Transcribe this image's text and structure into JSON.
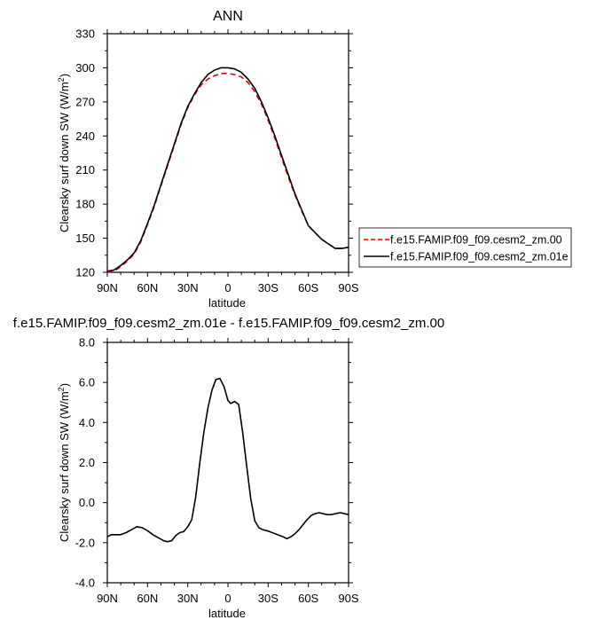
{
  "chart_data": [
    {
      "type": "line",
      "title": "ANN",
      "xlabel": "latitude",
      "ylabel": "Clearsky surf down SW (W/m",
      "ylabel_superscript": "2",
      "ylabel_close": ")",
      "xlim": [
        90,
        -90
      ],
      "ylim": [
        120,
        330
      ],
      "xticks": [
        90,
        60,
        30,
        0,
        -30,
        -60,
        -90
      ],
      "xtick_labels": [
        "90N",
        "60N",
        "30N",
        "0",
        "30S",
        "60S",
        "90S"
      ],
      "yticks": [
        120,
        150,
        180,
        210,
        240,
        270,
        300,
        330
      ],
      "ytick_labels": [
        "120",
        "150",
        "180",
        "210",
        "240",
        "270",
        "300",
        "330"
      ],
      "legend_position": "right",
      "x": [
        90,
        85,
        80,
        75,
        70,
        65,
        60,
        55,
        50,
        45,
        40,
        35,
        30,
        25,
        20,
        15,
        10,
        5,
        0,
        -5,
        -10,
        -15,
        -20,
        -25,
        -30,
        -35,
        -40,
        -45,
        -50,
        -55,
        -60,
        -65,
        -70,
        -75,
        -80,
        -85,
        -90
      ],
      "series": [
        {
          "name": "f.e15.FAMIP.f09_f09.cesm2_zm.00",
          "color": "#dd0000",
          "dash": "6,4",
          "values": [
            120,
            121,
            125,
            130,
            136,
            147,
            162,
            178,
            196,
            214,
            232,
            250,
            265,
            276,
            285,
            290,
            293,
            295,
            295,
            294,
            292,
            287,
            279,
            268,
            254,
            238,
            221,
            204,
            188,
            174,
            161,
            155,
            149,
            145,
            141,
            141,
            142
          ]
        },
        {
          "name": "f.e15.FAMIP.f09_f09.cesm2_zm.01e",
          "color": "#000000",
          "dash": "",
          "values": [
            121,
            122,
            126,
            131,
            137,
            148,
            163,
            179,
            197,
            215,
            233,
            251,
            266,
            277,
            287,
            294,
            298,
            300,
            300,
            299,
            296,
            290,
            282,
            270,
            256,
            240,
            223,
            206,
            189,
            175,
            161,
            155,
            149,
            145,
            141,
            141,
            142
          ]
        }
      ]
    },
    {
      "type": "line",
      "title": "f.e15.FAMIP.f09_f09.cesm2_zm.01e - f.e15.FAMIP.f09_f09.cesm2_zm.00",
      "xlabel": "latitude",
      "ylabel": "Clearsky surf down SW (W/m",
      "ylabel_superscript": "2",
      "ylabel_close": ")",
      "xlim": [
        90,
        -90
      ],
      "ylim": [
        -4.0,
        8.0
      ],
      "xticks": [
        90,
        60,
        30,
        0,
        -30,
        -60,
        -90
      ],
      "xtick_labels": [
        "90N",
        "60N",
        "30N",
        "0",
        "30S",
        "60S",
        "90S"
      ],
      "yticks": [
        -4.0,
        -2.0,
        0.0,
        2.0,
        4.0,
        6.0,
        8.0
      ],
      "ytick_labels": [
        "-4.0",
        "-2.0",
        "0.0",
        "2.0",
        "4.0",
        "6.0",
        "8.0"
      ],
      "x": [
        90,
        87,
        84,
        80,
        76,
        72,
        68,
        64,
        60,
        56,
        52,
        48,
        45,
        42,
        39,
        36,
        33,
        30,
        27,
        24,
        21,
        18,
        15,
        12,
        9,
        6,
        3,
        0,
        -2,
        -5,
        -8,
        -11,
        -14,
        -17,
        -20,
        -23,
        -26,
        -29,
        -33,
        -37,
        -41,
        -44,
        -47,
        -50,
        -53,
        -56,
        -59,
        -62,
        -65,
        -68,
        -71,
        -74,
        -77,
        -80,
        -84,
        -87,
        -90
      ],
      "series": [
        {
          "name": "",
          "color": "#000000",
          "dash": "",
          "values": [
            -1.7,
            -1.6,
            -1.6,
            -1.6,
            -1.5,
            -1.35,
            -1.2,
            -1.25,
            -1.4,
            -1.6,
            -1.75,
            -1.9,
            -1.95,
            -1.9,
            -1.65,
            -1.5,
            -1.45,
            -1.2,
            -0.85,
            0.3,
            2.0,
            3.5,
            4.7,
            5.6,
            6.15,
            6.2,
            5.8,
            5.1,
            4.95,
            5.05,
            4.9,
            3.5,
            1.8,
            0.2,
            -0.9,
            -1.25,
            -1.35,
            -1.4,
            -1.5,
            -1.6,
            -1.7,
            -1.8,
            -1.7,
            -1.55,
            -1.35,
            -1.1,
            -0.85,
            -0.65,
            -0.55,
            -0.5,
            -0.55,
            -0.6,
            -0.6,
            -0.55,
            -0.5,
            -0.55,
            -0.6
          ]
        }
      ]
    }
  ]
}
